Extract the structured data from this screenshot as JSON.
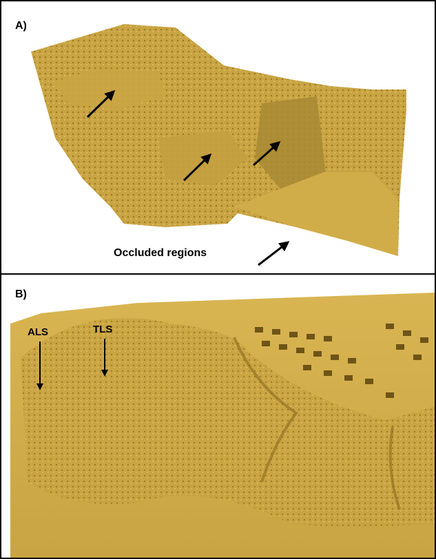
{
  "panel_a": {
    "label": "A)",
    "annotation": "Occluded regions"
  },
  "panel_b": {
    "label": "B)",
    "annotations": [
      "ALS",
      "TLS"
    ]
  }
}
